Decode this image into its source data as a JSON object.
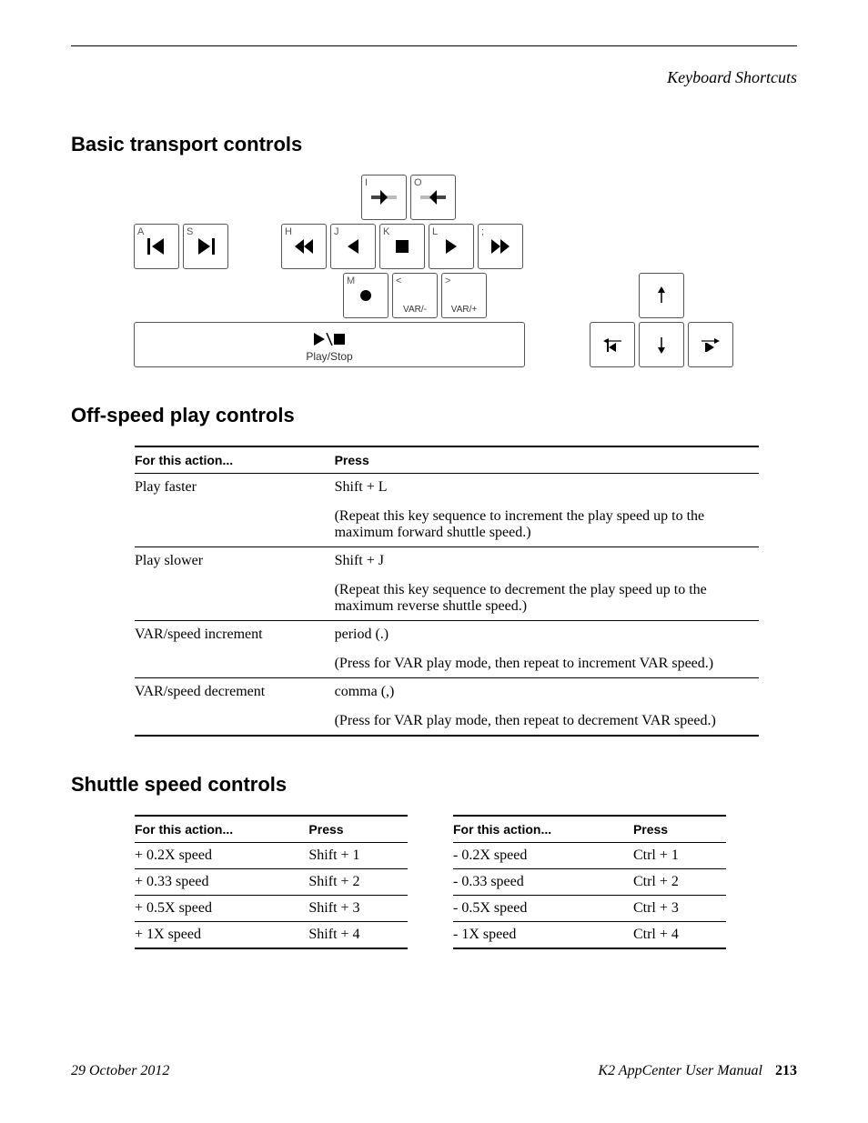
{
  "header": {
    "section": "Keyboard Shortcuts"
  },
  "sections": {
    "basic": "Basic transport controls",
    "offspeed": "Off-speed play controls",
    "shuttle": "Shuttle speed controls"
  },
  "keyboard": {
    "keys": {
      "i": {
        "corner": "I",
        "sub": ""
      },
      "o": {
        "corner": "O",
        "sub": ""
      },
      "a": {
        "corner": "A",
        "sub": ""
      },
      "s": {
        "corner": "S",
        "sub": ""
      },
      "h": {
        "corner": "H",
        "sub": ""
      },
      "j": {
        "corner": "J",
        "sub": ""
      },
      "k": {
        "corner": "K",
        "sub": ""
      },
      "l": {
        "corner": "L",
        "sub": ""
      },
      "semicolon": {
        "corner": ";",
        "sub": ""
      },
      "m": {
        "corner": "M",
        "sub": ""
      },
      "comma": {
        "corner": "<",
        "sub": "VAR/-"
      },
      "period": {
        "corner": ">",
        "sub": "VAR/+"
      },
      "space": {
        "sub": "Play/Stop"
      }
    },
    "colors": {
      "key_border": "#555555",
      "key_fill": "#ffffff",
      "glyph": "#000000"
    },
    "key_size": {
      "w": 50,
      "h": 50,
      "gap": 4
    }
  },
  "offspeed_table": {
    "headers": [
      "For this action...",
      "Press"
    ],
    "rows": [
      {
        "action": "Play faster",
        "press": "Shift + L",
        "note": "(Repeat this key sequence to increment the play speed up to the maximum forward shuttle speed.)"
      },
      {
        "action": "Play slower",
        "press": "Shift + J",
        "note": "(Repeat this key sequence to decrement the play speed up to the maximum reverse shuttle speed.)"
      },
      {
        "action": "VAR/speed increment",
        "press": "period (.)",
        "note": "(Press for VAR play mode, then repeat to increment VAR speed.)"
      },
      {
        "action": "VAR/speed decrement",
        "press": "comma (,)",
        "note": "(Press for VAR play mode, then repeat to decrement VAR speed.)"
      }
    ]
  },
  "shuttle_table": {
    "headers": [
      "For this action...",
      "Press"
    ],
    "left": [
      {
        "action": "+ 0.2X speed",
        "press": "Shift + 1"
      },
      {
        "action": "+ 0.33 speed",
        "press": "Shift + 2"
      },
      {
        "action": "+ 0.5X speed",
        "press": "Shift + 3"
      },
      {
        "action": "+ 1X speed",
        "press": "Shift + 4"
      }
    ],
    "right": [
      {
        "action": "- 0.2X speed",
        "press": "Ctrl + 1"
      },
      {
        "action": "- 0.33 speed",
        "press": "Ctrl + 2"
      },
      {
        "action": "- 0.5X speed",
        "press": "Ctrl + 3"
      },
      {
        "action": "- 1X speed",
        "press": "Ctrl + 4"
      }
    ]
  },
  "footer": {
    "date": "29 October 2012",
    "manual": "K2 AppCenter User Manual",
    "page": "213"
  }
}
